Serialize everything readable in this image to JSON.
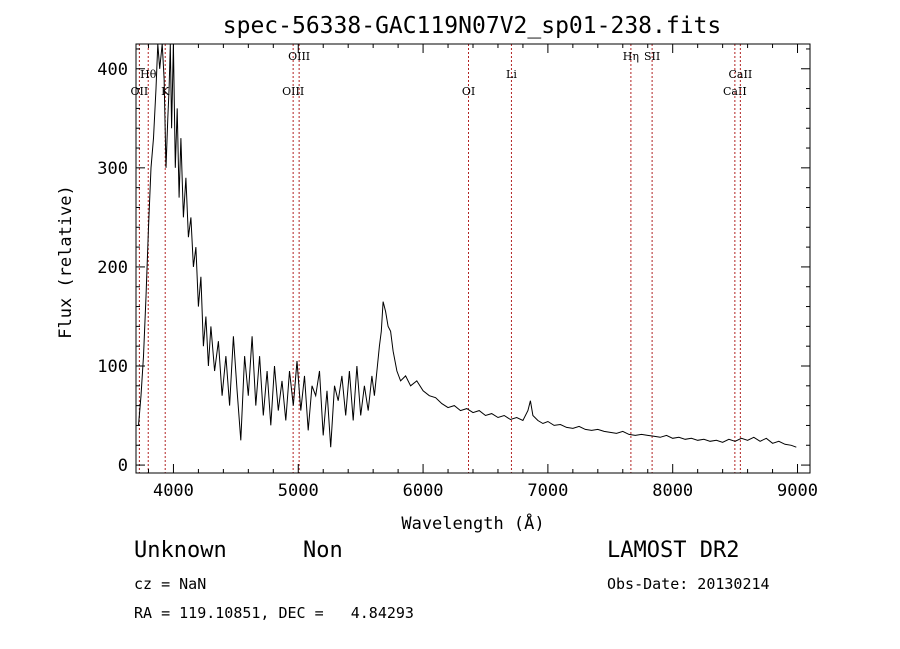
{
  "chart_data": {
    "type": "line",
    "title": "spec-56338-GAC119N07V2_sp01-238.fits",
    "xlabel": "Wavelength (Å)",
    "ylabel": "Flux (relative)",
    "xlim": [
      3700,
      9100
    ],
    "ylim": [
      -8,
      425
    ],
    "x_ticks": [
      4000,
      5000,
      6000,
      7000,
      8000,
      9000
    ],
    "y_ticks": [
      0,
      100,
      200,
      300,
      400
    ],
    "grid": false,
    "line_color": "#000000",
    "marker_color": "#b22222",
    "spectrum": [
      [
        3720,
        40
      ],
      [
        3740,
        70
      ],
      [
        3760,
        110
      ],
      [
        3780,
        170
      ],
      [
        3800,
        240
      ],
      [
        3820,
        300
      ],
      [
        3840,
        330
      ],
      [
        3860,
        380
      ],
      [
        3875,
        430
      ],
      [
        3890,
        400
      ],
      [
        3910,
        430
      ],
      [
        3925,
        390
      ],
      [
        3940,
        300
      ],
      [
        3955,
        350
      ],
      [
        3965,
        380
      ],
      [
        3975,
        430
      ],
      [
        3985,
        340
      ],
      [
        4000,
        430
      ],
      [
        4015,
        300
      ],
      [
        4030,
        360
      ],
      [
        4045,
        270
      ],
      [
        4060,
        330
      ],
      [
        4080,
        250
      ],
      [
        4100,
        290
      ],
      [
        4120,
        230
      ],
      [
        4140,
        250
      ],
      [
        4160,
        200
      ],
      [
        4180,
        220
      ],
      [
        4200,
        160
      ],
      [
        4220,
        190
      ],
      [
        4240,
        120
      ],
      [
        4260,
        150
      ],
      [
        4280,
        100
      ],
      [
        4300,
        140
      ],
      [
        4330,
        95
      ],
      [
        4360,
        125
      ],
      [
        4390,
        70
      ],
      [
        4420,
        110
      ],
      [
        4450,
        60
      ],
      [
        4480,
        130
      ],
      [
        4510,
        75
      ],
      [
        4540,
        25
      ],
      [
        4570,
        110
      ],
      [
        4600,
        70
      ],
      [
        4630,
        130
      ],
      [
        4660,
        60
      ],
      [
        4690,
        110
      ],
      [
        4720,
        50
      ],
      [
        4750,
        95
      ],
      [
        4780,
        40
      ],
      [
        4810,
        100
      ],
      [
        4840,
        55
      ],
      [
        4870,
        85
      ],
      [
        4900,
        45
      ],
      [
        4930,
        95
      ],
      [
        4960,
        60
      ],
      [
        4990,
        105
      ],
      [
        5020,
        55
      ],
      [
        5050,
        90
      ],
      [
        5080,
        35
      ],
      [
        5110,
        80
      ],
      [
        5140,
        70
      ],
      [
        5170,
        95
      ],
      [
        5200,
        30
      ],
      [
        5230,
        75
      ],
      [
        5260,
        18
      ],
      [
        5290,
        80
      ],
      [
        5320,
        65
      ],
      [
        5350,
        90
      ],
      [
        5380,
        50
      ],
      [
        5410,
        95
      ],
      [
        5440,
        45
      ],
      [
        5470,
        100
      ],
      [
        5500,
        50
      ],
      [
        5530,
        80
      ],
      [
        5560,
        55
      ],
      [
        5590,
        90
      ],
      [
        5610,
        70
      ],
      [
        5630,
        95
      ],
      [
        5650,
        120
      ],
      [
        5665,
        135
      ],
      [
        5680,
        165
      ],
      [
        5700,
        155
      ],
      [
        5720,
        140
      ],
      [
        5740,
        135
      ],
      [
        5760,
        115
      ],
      [
        5790,
        95
      ],
      [
        5820,
        85
      ],
      [
        5860,
        90
      ],
      [
        5900,
        80
      ],
      [
        5950,
        85
      ],
      [
        6000,
        75
      ],
      [
        6050,
        70
      ],
      [
        6100,
        68
      ],
      [
        6150,
        62
      ],
      [
        6200,
        58
      ],
      [
        6250,
        60
      ],
      [
        6300,
        55
      ],
      [
        6350,
        57
      ],
      [
        6400,
        53
      ],
      [
        6450,
        55
      ],
      [
        6500,
        50
      ],
      [
        6550,
        52
      ],
      [
        6600,
        48
      ],
      [
        6650,
        50
      ],
      [
        6700,
        46
      ],
      [
        6750,
        48
      ],
      [
        6800,
        45
      ],
      [
        6840,
        55
      ],
      [
        6860,
        65
      ],
      [
        6880,
        50
      ],
      [
        6920,
        45
      ],
      [
        6960,
        42
      ],
      [
        7000,
        44
      ],
      [
        7050,
        40
      ],
      [
        7100,
        41
      ],
      [
        7150,
        38
      ],
      [
        7200,
        37
      ],
      [
        7250,
        39
      ],
      [
        7300,
        36
      ],
      [
        7350,
        35
      ],
      [
        7400,
        36
      ],
      [
        7450,
        34
      ],
      [
        7500,
        33
      ],
      [
        7550,
        32
      ],
      [
        7600,
        34
      ],
      [
        7650,
        31
      ],
      [
        7700,
        30
      ],
      [
        7750,
        31
      ],
      [
        7800,
        30
      ],
      [
        7850,
        29
      ],
      [
        7900,
        28
      ],
      [
        7950,
        30
      ],
      [
        8000,
        27
      ],
      [
        8050,
        28
      ],
      [
        8100,
        26
      ],
      [
        8150,
        27
      ],
      [
        8200,
        25
      ],
      [
        8250,
        26
      ],
      [
        8300,
        24
      ],
      [
        8350,
        25
      ],
      [
        8400,
        23
      ],
      [
        8450,
        26
      ],
      [
        8500,
        24
      ],
      [
        8550,
        27
      ],
      [
        8600,
        25
      ],
      [
        8650,
        28
      ],
      [
        8700,
        24
      ],
      [
        8750,
        27
      ],
      [
        8800,
        22
      ],
      [
        8850,
        24
      ],
      [
        8900,
        21
      ],
      [
        8950,
        20
      ],
      [
        8990,
        18
      ]
    ],
    "line_markers": [
      {
        "label": "OII",
        "x": 3727,
        "row": 2
      },
      {
        "label": "Hθ",
        "x": 3798,
        "row": 1
      },
      {
        "label": "K",
        "x": 3934,
        "row": 2
      },
      {
        "label": "OIII",
        "x": 4959,
        "row": 2
      },
      {
        "label": "OIII",
        "x": 5007,
        "row": 0
      },
      {
        "label": "OI",
        "x": 6364,
        "row": 2
      },
      {
        "label": "Li",
        "x": 6708,
        "row": 1
      },
      {
        "label": "Hη",
        "x": 7665,
        "row": 0
      },
      {
        "label": "SII",
        "x": 7835,
        "row": 0
      },
      {
        "label": "CaII",
        "x": 8498,
        "row": 2
      },
      {
        "label": "CaII",
        "x": 8542,
        "row": 1
      }
    ]
  },
  "info": {
    "class": "Unknown",
    "subclass": "Non",
    "survey": "LAMOST DR2",
    "cz": "cz = NaN",
    "obs_date": "Obs-Date: 20130214",
    "coords": "RA = 119.10851, DEC =   4.84293"
  }
}
